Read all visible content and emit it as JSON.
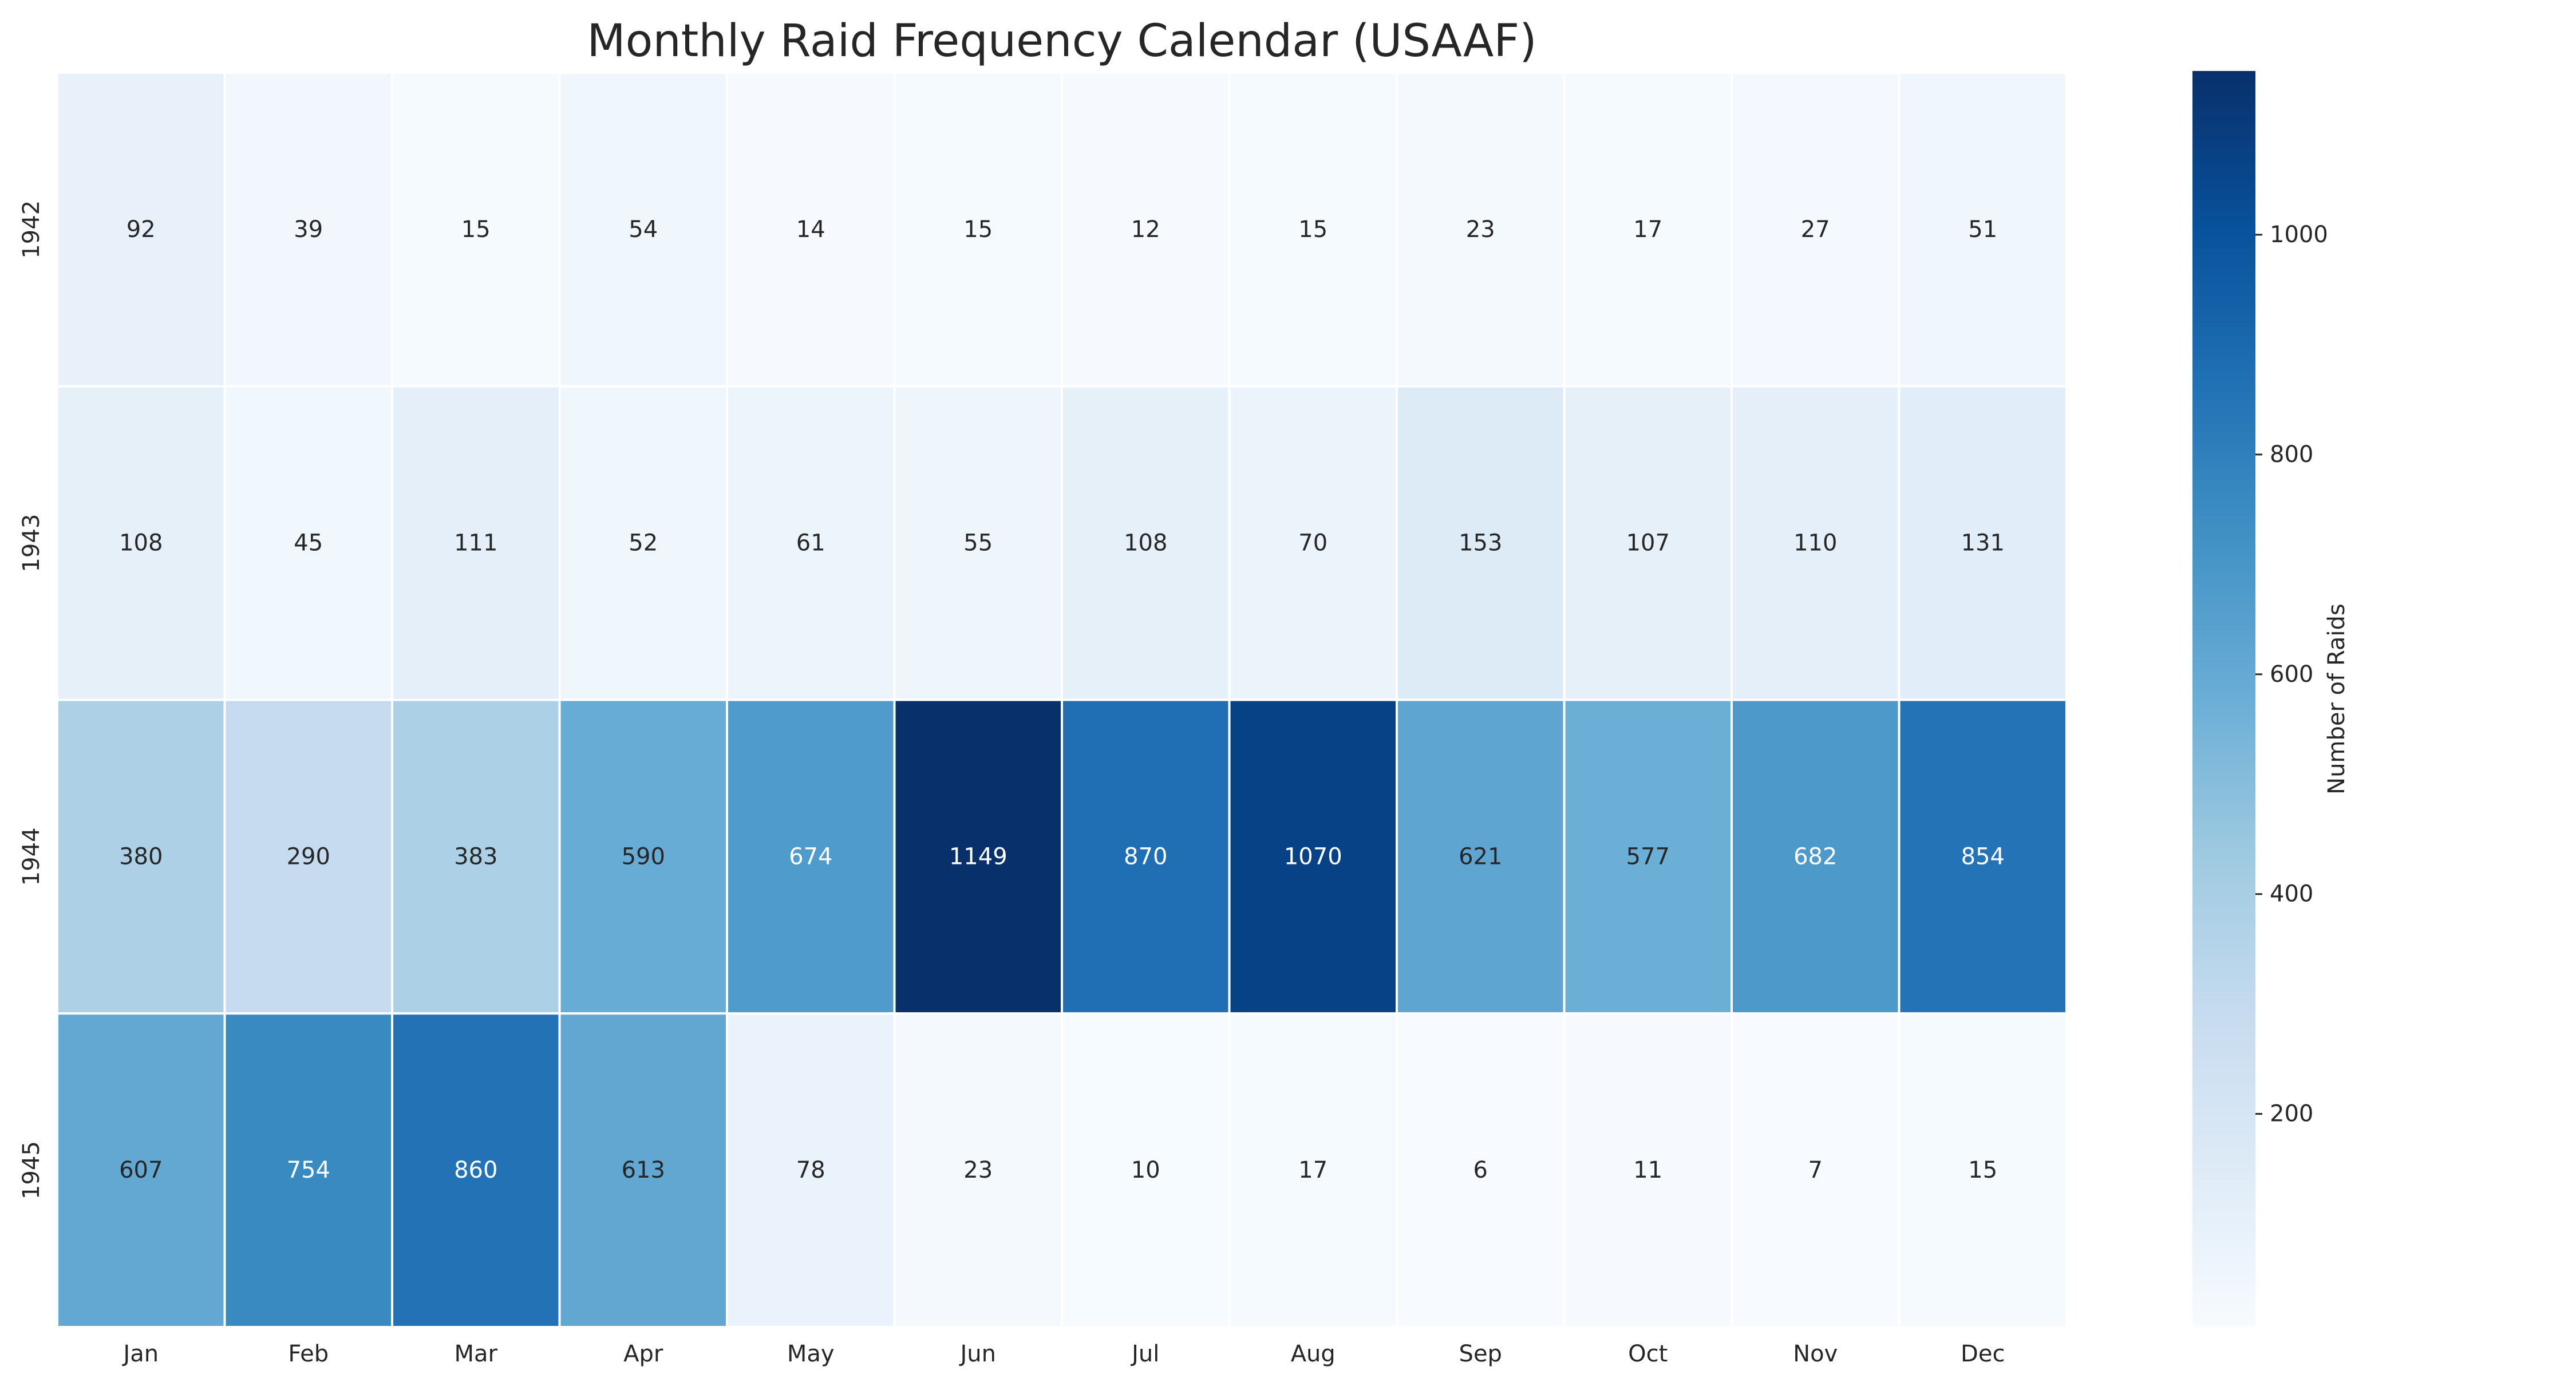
{
  "chart_data": {
    "type": "heatmap",
    "title": "Monthly Raid Frequency Calendar (USAAF)",
    "x_categories": [
      "Jan",
      "Feb",
      "Mar",
      "Apr",
      "May",
      "Jun",
      "Jul",
      "Aug",
      "Sep",
      "Oct",
      "Nov",
      "Dec"
    ],
    "y_categories": [
      "1942",
      "1943",
      "1944",
      "1945"
    ],
    "values": [
      [
        92,
        39,
        15,
        54,
        14,
        15,
        12,
        15,
        23,
        17,
        27,
        51
      ],
      [
        108,
        45,
        111,
        52,
        61,
        55,
        108,
        70,
        153,
        107,
        110,
        131
      ],
      [
        380,
        290,
        383,
        590,
        674,
        1149,
        870,
        1070,
        621,
        577,
        682,
        854
      ],
      [
        607,
        754,
        860,
        613,
        78,
        23,
        10,
        17,
        6,
        11,
        7,
        15
      ]
    ],
    "colorbar": {
      "label": "Number of Raids",
      "range": [
        6,
        1149
      ],
      "ticks": [
        200,
        400,
        600,
        800,
        1000
      ]
    },
    "colormap": "Blues",
    "grid": false
  }
}
